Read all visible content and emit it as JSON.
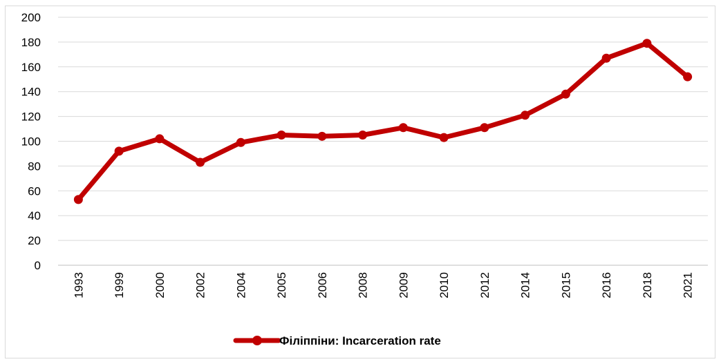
{
  "chart_data": {
    "type": "line",
    "categories": [
      "1993",
      "1999",
      "2000",
      "2002",
      "2004",
      "2005",
      "2006",
      "2008",
      "2009",
      "2010",
      "2012",
      "2014",
      "2015",
      "2016",
      "2018",
      "2021"
    ],
    "series": [
      {
        "name": "Філіппіни: Incarceration rate",
        "values": [
          53,
          92,
          102,
          83,
          99,
          105,
          104,
          105,
          111,
          103,
          111,
          121,
          138,
          167,
          179,
          152
        ],
        "color": "#c00000"
      }
    ],
    "yticks": [
      0,
      20,
      40,
      60,
      80,
      100,
      120,
      140,
      160,
      180,
      200
    ],
    "ylim": [
      0,
      200
    ],
    "grid": true,
    "legend_position": "bottom",
    "marker": "circle",
    "gridline_color": "#d9d9d9",
    "axis_color": "#bfbfbf"
  }
}
